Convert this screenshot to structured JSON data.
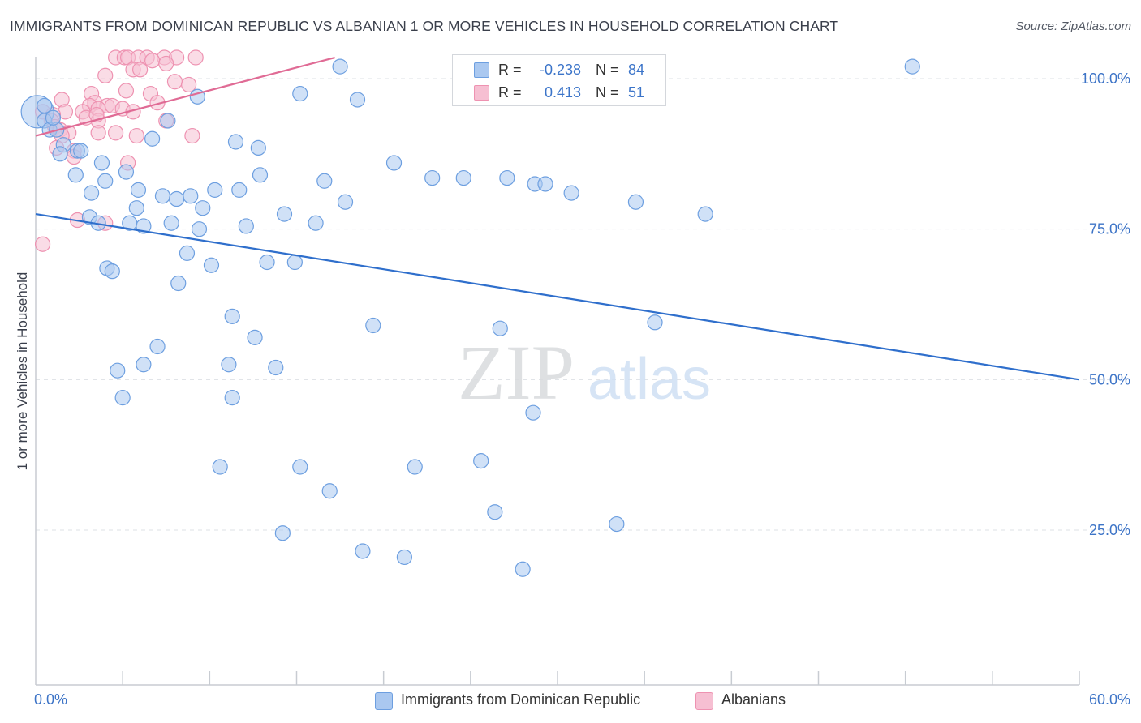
{
  "header": {
    "title": "IMMIGRANTS FROM DOMINICAN REPUBLIC VS ALBANIAN 1 OR MORE VEHICLES IN HOUSEHOLD CORRELATION CHART",
    "source": "Source: ZipAtlas.com"
  },
  "watermark": {
    "zip": "ZIP",
    "atlas": "atlas"
  },
  "legend": {
    "rows": [
      {
        "r_label": "R =",
        "r_value": "-0.238",
        "n_label": "N =",
        "n_value": "84"
      },
      {
        "r_label": "R =",
        "r_value": "0.413",
        "n_label": "N =",
        "n_value": "51"
      }
    ]
  },
  "bottom_legend": {
    "series1": "Immigrants from Dominican Republic",
    "series2": "Albanians"
  },
  "colors": {
    "blue_fill": "#aac8f0",
    "blue_stroke": "#6d9fe0",
    "blue_line": "#2f6fcc",
    "pink_fill": "#f6bfd2",
    "pink_stroke": "#ee92b1",
    "pink_line": "#e06b95",
    "axis_text": "#3d74c7",
    "grid": "#dde0e5"
  },
  "chart_data": {
    "type": "scatter",
    "title": "IMMIGRANTS FROM DOMINICAN REPUBLIC VS ALBANIAN 1 OR MORE VEHICLES IN HOUSEHOLD CORRELATION CHART",
    "xlabel": "",
    "ylabel": "1 or more Vehicles in Household",
    "xlim": [
      0,
      60
    ],
    "ylim": [
      0,
      100
    ],
    "x_tick_labels": [
      "0.0%",
      "60.0%"
    ],
    "y_ticks": [
      25,
      50,
      75,
      100
    ],
    "y_tick_labels": [
      "25.0%",
      "50.0%",
      "75.0%",
      "100.0%"
    ],
    "series": [
      {
        "name": "Immigrants from Dominican Republic",
        "color": "#aac8f0",
        "R": -0.238,
        "N": 84,
        "trend": {
          "x": [
            0,
            60
          ],
          "y": [
            77.5,
            50.0
          ]
        },
        "points": [
          [
            0.1,
            94.5
          ],
          [
            0.5,
            93.0
          ],
          [
            0.8,
            91.5
          ],
          [
            1.2,
            91.5
          ],
          [
            1.6,
            89.0
          ],
          [
            1.4,
            87.5
          ],
          [
            2.4,
            88.0
          ],
          [
            2.6,
            88.0
          ],
          [
            2.3,
            84.0
          ],
          [
            3.2,
            81.0
          ],
          [
            3.8,
            86.0
          ],
          [
            4.0,
            83.0
          ],
          [
            17.5,
            102.0
          ],
          [
            15.2,
            97.5
          ],
          [
            9.3,
            97.0
          ],
          [
            18.5,
            96.5
          ],
          [
            7.6,
            93.0
          ],
          [
            11.5,
            89.5
          ],
          [
            6.7,
            90.0
          ],
          [
            12.8,
            88.5
          ],
          [
            20.6,
            86.0
          ],
          [
            5.2,
            84.5
          ],
          [
            12.9,
            84.0
          ],
          [
            16.6,
            83.0
          ],
          [
            22.8,
            83.5
          ],
          [
            24.6,
            83.5
          ],
          [
            27.1,
            83.5
          ],
          [
            28.7,
            82.5
          ],
          [
            29.3,
            82.5
          ],
          [
            30.8,
            81.0
          ],
          [
            5.9,
            81.5
          ],
          [
            7.3,
            80.5
          ],
          [
            8.1,
            80.0
          ],
          [
            8.9,
            80.5
          ],
          [
            10.3,
            81.5
          ],
          [
            11.7,
            81.5
          ],
          [
            17.8,
            79.5
          ],
          [
            5.8,
            78.5
          ],
          [
            9.6,
            78.5
          ],
          [
            14.3,
            77.5
          ],
          [
            16.1,
            76.0
          ],
          [
            34.5,
            79.5
          ],
          [
            38.5,
            77.5
          ],
          [
            3.1,
            77.0
          ],
          [
            3.6,
            76.0
          ],
          [
            5.4,
            76.0
          ],
          [
            6.2,
            75.5
          ],
          [
            7.8,
            76.0
          ],
          [
            9.4,
            75.0
          ],
          [
            12.1,
            75.5
          ],
          [
            8.7,
            71.0
          ],
          [
            10.1,
            69.0
          ],
          [
            13.3,
            69.5
          ],
          [
            14.9,
            69.5
          ],
          [
            4.1,
            68.5
          ],
          [
            4.4,
            68.0
          ],
          [
            8.2,
            66.0
          ],
          [
            11.3,
            60.5
          ],
          [
            19.4,
            59.0
          ],
          [
            26.7,
            58.5
          ],
          [
            35.6,
            59.5
          ],
          [
            12.6,
            57.0
          ],
          [
            7.0,
            55.5
          ],
          [
            11.1,
            52.5
          ],
          [
            13.8,
            52.0
          ],
          [
            4.7,
            51.5
          ],
          [
            6.2,
            52.5
          ],
          [
            5.0,
            47.0
          ],
          [
            11.3,
            47.0
          ],
          [
            28.6,
            44.5
          ],
          [
            50.4,
            102.0
          ],
          [
            10.6,
            35.5
          ],
          [
            15.2,
            35.5
          ],
          [
            21.8,
            35.5
          ],
          [
            25.6,
            36.5
          ],
          [
            16.9,
            31.5
          ],
          [
            26.4,
            28.0
          ],
          [
            33.4,
            26.0
          ],
          [
            14.2,
            24.5
          ],
          [
            18.8,
            21.5
          ],
          [
            21.2,
            20.5
          ],
          [
            28.0,
            18.5
          ],
          [
            0.5,
            95.5
          ],
          [
            1.0,
            93.5
          ]
        ]
      },
      {
        "name": "Albanians",
        "color": "#f6bfd2",
        "R": 0.413,
        "N": 51,
        "trend": {
          "x": [
            0,
            17.2
          ],
          "y": [
            90.5,
            103.5
          ]
        },
        "points": [
          [
            4.6,
            103.5
          ],
          [
            5.1,
            103.5
          ],
          [
            5.3,
            103.5
          ],
          [
            5.9,
            103.5
          ],
          [
            6.4,
            103.5
          ],
          [
            7.4,
            103.5
          ],
          [
            8.1,
            103.5
          ],
          [
            9.2,
            103.5
          ],
          [
            6.7,
            103.0
          ],
          [
            7.5,
            102.5
          ],
          [
            5.6,
            101.5
          ],
          [
            6.0,
            101.5
          ],
          [
            4.0,
            100.5
          ],
          [
            8.0,
            99.5
          ],
          [
            8.8,
            99.0
          ],
          [
            5.2,
            98.0
          ],
          [
            3.2,
            97.5
          ],
          [
            6.6,
            97.5
          ],
          [
            3.4,
            96.0
          ],
          [
            1.5,
            96.5
          ],
          [
            7.0,
            96.0
          ],
          [
            3.1,
            95.5
          ],
          [
            4.1,
            95.5
          ],
          [
            3.6,
            95.0
          ],
          [
            4.4,
            95.5
          ],
          [
            5.0,
            95.0
          ],
          [
            1.7,
            94.5
          ],
          [
            0.4,
            94.5
          ],
          [
            2.7,
            94.5
          ],
          [
            1.0,
            94.0
          ],
          [
            2.9,
            93.5
          ],
          [
            3.6,
            93.0
          ],
          [
            3.5,
            94.0
          ],
          [
            5.6,
            94.5
          ],
          [
            7.5,
            93.0
          ],
          [
            0.9,
            93.0
          ],
          [
            1.1,
            92.0
          ],
          [
            1.4,
            91.5
          ],
          [
            1.9,
            91.0
          ],
          [
            3.6,
            91.0
          ],
          [
            4.6,
            91.0
          ],
          [
            5.8,
            90.5
          ],
          [
            9.0,
            90.5
          ],
          [
            1.5,
            90.5
          ],
          [
            1.2,
            88.5
          ],
          [
            2.2,
            88.0
          ],
          [
            2.2,
            87.0
          ],
          [
            5.3,
            86.0
          ],
          [
            2.4,
            76.5
          ],
          [
            4.0,
            76.0
          ],
          [
            0.4,
            72.5
          ]
        ]
      }
    ]
  }
}
